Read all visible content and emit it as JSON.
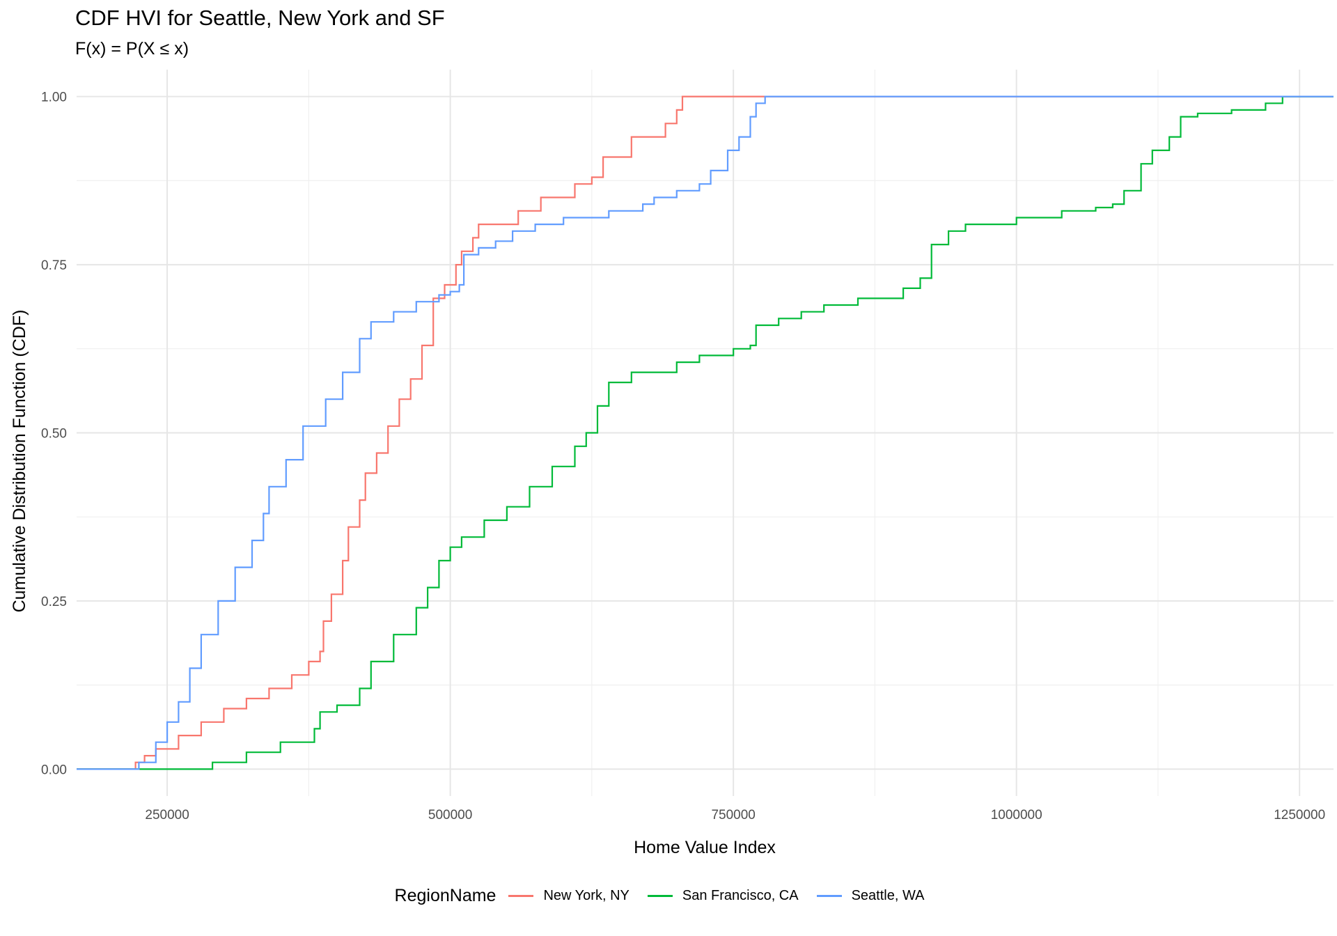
{
  "chart_data": {
    "type": "line",
    "title": "CDF HVI for Seattle, New York and SF",
    "subtitle": "F(x) = P(X ≤ x)",
    "xlabel": "Home Value Index",
    "ylabel": "Cumulative Distribution Function (CDF)",
    "xlim": [
      170000,
      1280000
    ],
    "ylim": [
      -0.04,
      1.04
    ],
    "x_ticks": [
      250000,
      500000,
      750000,
      1000000,
      1250000
    ],
    "x_tick_labels": [
      "250000",
      "500000",
      "750000",
      "1000000",
      "1250000"
    ],
    "y_ticks": [
      0,
      0.25,
      0.5,
      0.75,
      1
    ],
    "y_tick_labels": [
      "0.00",
      "0.25",
      "0.50",
      "0.75",
      "1.00"
    ],
    "legend_title": "RegionName",
    "legend_position": "bottom",
    "grid": true,
    "series": [
      {
        "name": "New York, NY",
        "color": "#F8766D",
        "points": [
          [
            170000,
            0
          ],
          [
            220000,
            0
          ],
          [
            222000,
            0.01
          ],
          [
            230000,
            0.02
          ],
          [
            240000,
            0.03
          ],
          [
            260000,
            0.05
          ],
          [
            280000,
            0.07
          ],
          [
            300000,
            0.09
          ],
          [
            320000,
            0.105
          ],
          [
            340000,
            0.12
          ],
          [
            360000,
            0.14
          ],
          [
            375000,
            0.16
          ],
          [
            385000,
            0.175
          ],
          [
            388000,
            0.22
          ],
          [
            395000,
            0.26
          ],
          [
            405000,
            0.31
          ],
          [
            410000,
            0.36
          ],
          [
            420000,
            0.4
          ],
          [
            425000,
            0.44
          ],
          [
            435000,
            0.47
          ],
          [
            445000,
            0.51
          ],
          [
            455000,
            0.55
          ],
          [
            465000,
            0.58
          ],
          [
            475000,
            0.63
          ],
          [
            485000,
            0.7
          ],
          [
            495000,
            0.72
          ],
          [
            505000,
            0.75
          ],
          [
            510000,
            0.77
          ],
          [
            520000,
            0.79
          ],
          [
            525000,
            0.81
          ],
          [
            560000,
            0.83
          ],
          [
            580000,
            0.85
          ],
          [
            610000,
            0.87
          ],
          [
            625000,
            0.88
          ],
          [
            635000,
            0.91
          ],
          [
            660000,
            0.94
          ],
          [
            690000,
            0.96
          ],
          [
            700000,
            0.98
          ],
          [
            705000,
            1.0
          ],
          [
            1280000,
            1.0
          ]
        ]
      },
      {
        "name": "San Francisco, CA",
        "color": "#00BA38",
        "points": [
          [
            170000,
            0
          ],
          [
            285000,
            0
          ],
          [
            290000,
            0.01
          ],
          [
            320000,
            0.025
          ],
          [
            350000,
            0.04
          ],
          [
            380000,
            0.06
          ],
          [
            385000,
            0.085
          ],
          [
            400000,
            0.095
          ],
          [
            420000,
            0.12
          ],
          [
            430000,
            0.16
          ],
          [
            450000,
            0.2
          ],
          [
            470000,
            0.24
          ],
          [
            480000,
            0.27
          ],
          [
            490000,
            0.31
          ],
          [
            500000,
            0.33
          ],
          [
            510000,
            0.345
          ],
          [
            530000,
            0.37
          ],
          [
            550000,
            0.39
          ],
          [
            570000,
            0.42
          ],
          [
            590000,
            0.45
          ],
          [
            610000,
            0.48
          ],
          [
            620000,
            0.5
          ],
          [
            630000,
            0.54
          ],
          [
            640000,
            0.575
          ],
          [
            660000,
            0.59
          ],
          [
            700000,
            0.605
          ],
          [
            720000,
            0.615
          ],
          [
            750000,
            0.625
          ],
          [
            765000,
            0.63
          ],
          [
            770000,
            0.66
          ],
          [
            790000,
            0.67
          ],
          [
            810000,
            0.68
          ],
          [
            830000,
            0.69
          ],
          [
            860000,
            0.7
          ],
          [
            900000,
            0.715
          ],
          [
            915000,
            0.73
          ],
          [
            925000,
            0.78
          ],
          [
            940000,
            0.8
          ],
          [
            955000,
            0.81
          ],
          [
            1000000,
            0.82
          ],
          [
            1040000,
            0.83
          ],
          [
            1070000,
            0.835
          ],
          [
            1085000,
            0.84
          ],
          [
            1095000,
            0.86
          ],
          [
            1110000,
            0.9
          ],
          [
            1120000,
            0.92
          ],
          [
            1135000,
            0.94
          ],
          [
            1145000,
            0.97
          ],
          [
            1160000,
            0.975
          ],
          [
            1190000,
            0.98
          ],
          [
            1220000,
            0.99
          ],
          [
            1235000,
            1.0
          ],
          [
            1280000,
            1.0
          ]
        ]
      },
      {
        "name": "Seattle, WA",
        "color": "#619CFF",
        "points": [
          [
            170000,
            0
          ],
          [
            220000,
            0
          ],
          [
            225000,
            0.01
          ],
          [
            240000,
            0.04
          ],
          [
            250000,
            0.07
          ],
          [
            260000,
            0.1
          ],
          [
            270000,
            0.15
          ],
          [
            280000,
            0.2
          ],
          [
            295000,
            0.25
          ],
          [
            310000,
            0.3
          ],
          [
            325000,
            0.34
          ],
          [
            335000,
            0.38
          ],
          [
            340000,
            0.42
          ],
          [
            355000,
            0.46
          ],
          [
            370000,
            0.51
          ],
          [
            390000,
            0.55
          ],
          [
            405000,
            0.59
          ],
          [
            420000,
            0.64
          ],
          [
            430000,
            0.665
          ],
          [
            450000,
            0.68
          ],
          [
            470000,
            0.695
          ],
          [
            490000,
            0.705
          ],
          [
            500000,
            0.71
          ],
          [
            508000,
            0.72
          ],
          [
            512000,
            0.765
          ],
          [
            525000,
            0.775
          ],
          [
            540000,
            0.785
          ],
          [
            555000,
            0.8
          ],
          [
            575000,
            0.81
          ],
          [
            600000,
            0.82
          ],
          [
            640000,
            0.83
          ],
          [
            670000,
            0.84
          ],
          [
            680000,
            0.85
          ],
          [
            700000,
            0.86
          ],
          [
            720000,
            0.87
          ],
          [
            730000,
            0.89
          ],
          [
            745000,
            0.92
          ],
          [
            755000,
            0.94
          ],
          [
            765000,
            0.97
          ],
          [
            770000,
            0.99
          ],
          [
            778000,
            1.0
          ],
          [
            1280000,
            1.0
          ]
        ]
      }
    ]
  }
}
